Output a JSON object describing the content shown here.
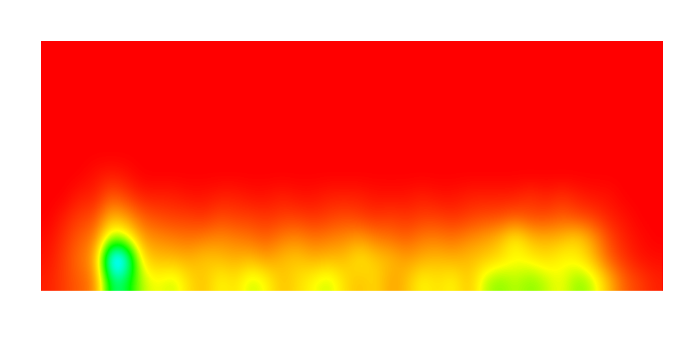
{
  "chart_data": {
    "type": "heatmap",
    "tick_labels": false,
    "color_range": [
      0,
      1
    ],
    "cells": [
      [
        0,
        0,
        0,
        0,
        0,
        0,
        0,
        0,
        0,
        0,
        0,
        0,
        0,
        0,
        0,
        0,
        0,
        0,
        0,
        0,
        0,
        0,
        0,
        0,
        0,
        0,
        0,
        0,
        0,
        0,
        0,
        0,
        0,
        0,
        0,
        0,
        0,
        0,
        0,
        0
      ],
      [
        0,
        0,
        0,
        0,
        0,
        0,
        0,
        0,
        0,
        0,
        0,
        0,
        0,
        0,
        0,
        0,
        0,
        0,
        0,
        0,
        0,
        0,
        0,
        0,
        0,
        0,
        0,
        0,
        0,
        0,
        0,
        0,
        0,
        0,
        0,
        0,
        0,
        0,
        0,
        0
      ],
      [
        0,
        0,
        0,
        0,
        0,
        0,
        0,
        0,
        0,
        0,
        0,
        0,
        0,
        0,
        0,
        0,
        0,
        0,
        0,
        0,
        0,
        0,
        0,
        0,
        0,
        0,
        0,
        0,
        0,
        0,
        0,
        0,
        0,
        0,
        0,
        0,
        0,
        0,
        0,
        0
      ],
      [
        0,
        0,
        0,
        0,
        0,
        0,
        0,
        0,
        0,
        0,
        0,
        0,
        0,
        0,
        0,
        0,
        0,
        0,
        0,
        0,
        0,
        0,
        0,
        0,
        0,
        0,
        0,
        0,
        0,
        0,
        0,
        0,
        0,
        0,
        0,
        0,
        0,
        0,
        0,
        0
      ],
      [
        0,
        0,
        0,
        0,
        0,
        0,
        0,
        0,
        0,
        0,
        0,
        0,
        0,
        0,
        0,
        0,
        0,
        0,
        0,
        0,
        0,
        0,
        0,
        0,
        0,
        0,
        0,
        0,
        0,
        0,
        0,
        0,
        0,
        0,
        0,
        0,
        0,
        0,
        0,
        0
      ],
      [
        0,
        0,
        0,
        0,
        0,
        0,
        0,
        0,
        0,
        0,
        0,
        0,
        0,
        0,
        0,
        0,
        0,
        0,
        0,
        0,
        0,
        0,
        0,
        0,
        0,
        0,
        0,
        0,
        0,
        0,
        0,
        0,
        0,
        0,
        0,
        0,
        0,
        0,
        0,
        0
      ],
      [
        0,
        0,
        0,
        0.03,
        0.05,
        0.03,
        0,
        0,
        0,
        0,
        0,
        0,
        0,
        0,
        0,
        0,
        0,
        0,
        0,
        0,
        0,
        0,
        0,
        0,
        0,
        0,
        0,
        0,
        0,
        0,
        0,
        0,
        0,
        0,
        0,
        0,
        0,
        0,
        0,
        0
      ],
      [
        0,
        0,
        0.05,
        0.05,
        0.15,
        0.1,
        0.05,
        0.05,
        0.05,
        0.03,
        0.03,
        0.05,
        0.05,
        0.03,
        0.03,
        0.05,
        0.03,
        0.03,
        0.05,
        0.05,
        0.05,
        0.03,
        0.03,
        0.03,
        0.05,
        0.03,
        0.03,
        0.05,
        0.05,
        0.05,
        0.05,
        0.08,
        0.05,
        0.08,
        0.05,
        0.03,
        0.03,
        0,
        0,
        0
      ],
      [
        0,
        0.05,
        0.1,
        0.12,
        0.3,
        0.25,
        0.15,
        0.12,
        0.1,
        0.1,
        0.08,
        0.12,
        0.1,
        0.1,
        0.08,
        0.1,
        0.1,
        0.08,
        0.1,
        0.12,
        0.1,
        0.08,
        0.1,
        0.08,
        0.1,
        0.1,
        0.08,
        0.1,
        0.12,
        0.12,
        0.15,
        0.12,
        0.12,
        0.15,
        0.12,
        0.1,
        0.05,
        0.03,
        0,
        0
      ],
      [
        0.02,
        0.08,
        0.15,
        0.2,
        0.5,
        0.45,
        0.25,
        0.22,
        0.2,
        0.18,
        0.2,
        0.22,
        0.2,
        0.18,
        0.15,
        0.2,
        0.22,
        0.18,
        0.2,
        0.22,
        0.25,
        0.2,
        0.18,
        0.15,
        0.2,
        0.2,
        0.18,
        0.22,
        0.25,
        0.3,
        0.4,
        0.3,
        0.28,
        0.3,
        0.35,
        0.25,
        0.12,
        0.05,
        0.02,
        0
      ],
      [
        0.03,
        0.1,
        0.18,
        0.25,
        0.95,
        0.85,
        0.35,
        0.3,
        0.3,
        0.28,
        0.32,
        0.3,
        0.28,
        0.3,
        0.25,
        0.3,
        0.32,
        0.28,
        0.3,
        0.3,
        0.38,
        0.32,
        0.3,
        0.25,
        0.28,
        0.3,
        0.28,
        0.3,
        0.32,
        0.35,
        0.4,
        0.38,
        0.35,
        0.4,
        0.38,
        0.3,
        0.15,
        0.08,
        0.03,
        0.02
      ],
      [
        0.05,
        0.1,
        0.15,
        0.2,
        0.7,
        0.65,
        0.45,
        0.4,
        0.45,
        0.35,
        0.3,
        0.4,
        0.35,
        0.45,
        0.4,
        0.3,
        0.35,
        0.4,
        0.45,
        0.35,
        0.3,
        0.35,
        0.25,
        0.3,
        0.4,
        0.35,
        0.4,
        0.3,
        0.45,
        0.5,
        0.45,
        0.5,
        0.45,
        0.4,
        0.5,
        0.45,
        0.3,
        0.15,
        0.1,
        0.05
      ]
    ]
  }
}
